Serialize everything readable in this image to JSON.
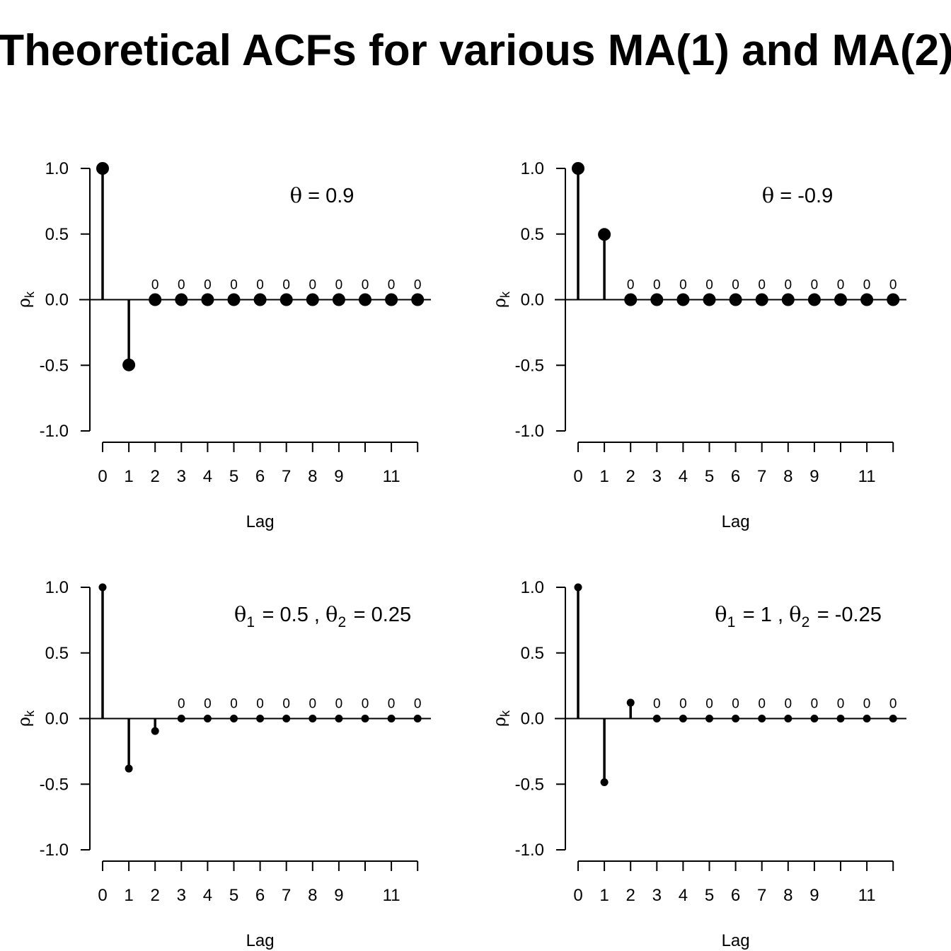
{
  "title": "Theoretical ACFs for various MA(1) and MA(2)",
  "chart_data": [
    {
      "type": "stem",
      "xlabel": "Lag",
      "ylabel": "ρk",
      "ylim": [
        -1,
        1
      ],
      "y_ticks": [
        "1.0",
        "0.5",
        "0.0",
        "-0.5",
        "-1.0"
      ],
      "x_tick_labels": [
        "0",
        "1",
        "2",
        "3",
        "4",
        "5",
        "6",
        "7",
        "8",
        "9",
        "11"
      ],
      "annotation": "θ = 0.9",
      "lags": [
        0,
        1,
        2,
        3,
        4,
        5,
        6,
        7,
        8,
        9,
        10,
        11,
        12
      ],
      "values": [
        1,
        -0.497,
        0,
        0,
        0,
        0,
        0,
        0,
        0,
        0,
        0,
        0,
        0
      ],
      "zero_labels": [
        "0",
        "0",
        "0",
        "0",
        "0",
        "0",
        "0",
        "0",
        "0",
        "0",
        "0"
      ],
      "marker": "large"
    },
    {
      "type": "stem",
      "xlabel": "Lag",
      "ylabel": "ρk",
      "ylim": [
        -1,
        1
      ],
      "y_ticks": [
        "1.0",
        "0.5",
        "0.0",
        "-0.5",
        "-1.0"
      ],
      "x_tick_labels": [
        "0",
        "1",
        "2",
        "3",
        "4",
        "5",
        "6",
        "7",
        "8",
        "9",
        "11"
      ],
      "annotation": "θ = -0.9",
      "lags": [
        0,
        1,
        2,
        3,
        4,
        5,
        6,
        7,
        8,
        9,
        10,
        11,
        12
      ],
      "values": [
        1,
        0.497,
        0,
        0,
        0,
        0,
        0,
        0,
        0,
        0,
        0,
        0,
        0
      ],
      "zero_labels": [
        "0",
        "0",
        "0",
        "0",
        "0",
        "0",
        "0",
        "0",
        "0",
        "0",
        "0"
      ],
      "marker": "large"
    },
    {
      "type": "stem",
      "xlabel": "Lag",
      "ylabel": "ρk",
      "ylim": [
        -1,
        1
      ],
      "y_ticks": [
        "1.0",
        "0.5",
        "0.0",
        "-0.5",
        "-1.0"
      ],
      "x_tick_labels": [
        "0",
        "1",
        "2",
        "3",
        "4",
        "5",
        "6",
        "7",
        "8",
        "9",
        "11"
      ],
      "annotation": "θ1 = 0.5 , θ2 = 0.25",
      "lags": [
        0,
        1,
        2,
        3,
        4,
        5,
        6,
        7,
        8,
        9,
        10,
        11,
        12
      ],
      "values": [
        1,
        -0.381,
        -0.095,
        0,
        0,
        0,
        0,
        0,
        0,
        0,
        0,
        0,
        0
      ],
      "zero_labels": [
        "0",
        "0",
        "0",
        "0",
        "0",
        "0",
        "0",
        "0",
        "0",
        "0"
      ],
      "marker": "small"
    },
    {
      "type": "stem",
      "xlabel": "Lag",
      "ylabel": "ρk",
      "ylim": [
        -1,
        1
      ],
      "y_ticks": [
        "1.0",
        "0.5",
        "0.0",
        "-0.5",
        "-1.0"
      ],
      "x_tick_labels": [
        "0",
        "1",
        "2",
        "3",
        "4",
        "5",
        "6",
        "7",
        "8",
        "9",
        "11"
      ],
      "annotation": "θ1 = 1 , θ2 = -0.25",
      "lags": [
        0,
        1,
        2,
        3,
        4,
        5,
        6,
        7,
        8,
        9,
        10,
        11,
        12
      ],
      "values": [
        1,
        -0.485,
        0.121,
        0,
        0,
        0,
        0,
        0,
        0,
        0,
        0,
        0,
        0
      ],
      "zero_labels": [
        "0",
        "0",
        "0",
        "0",
        "0",
        "0",
        "0",
        "0",
        "0",
        "0"
      ],
      "marker": "small"
    }
  ]
}
